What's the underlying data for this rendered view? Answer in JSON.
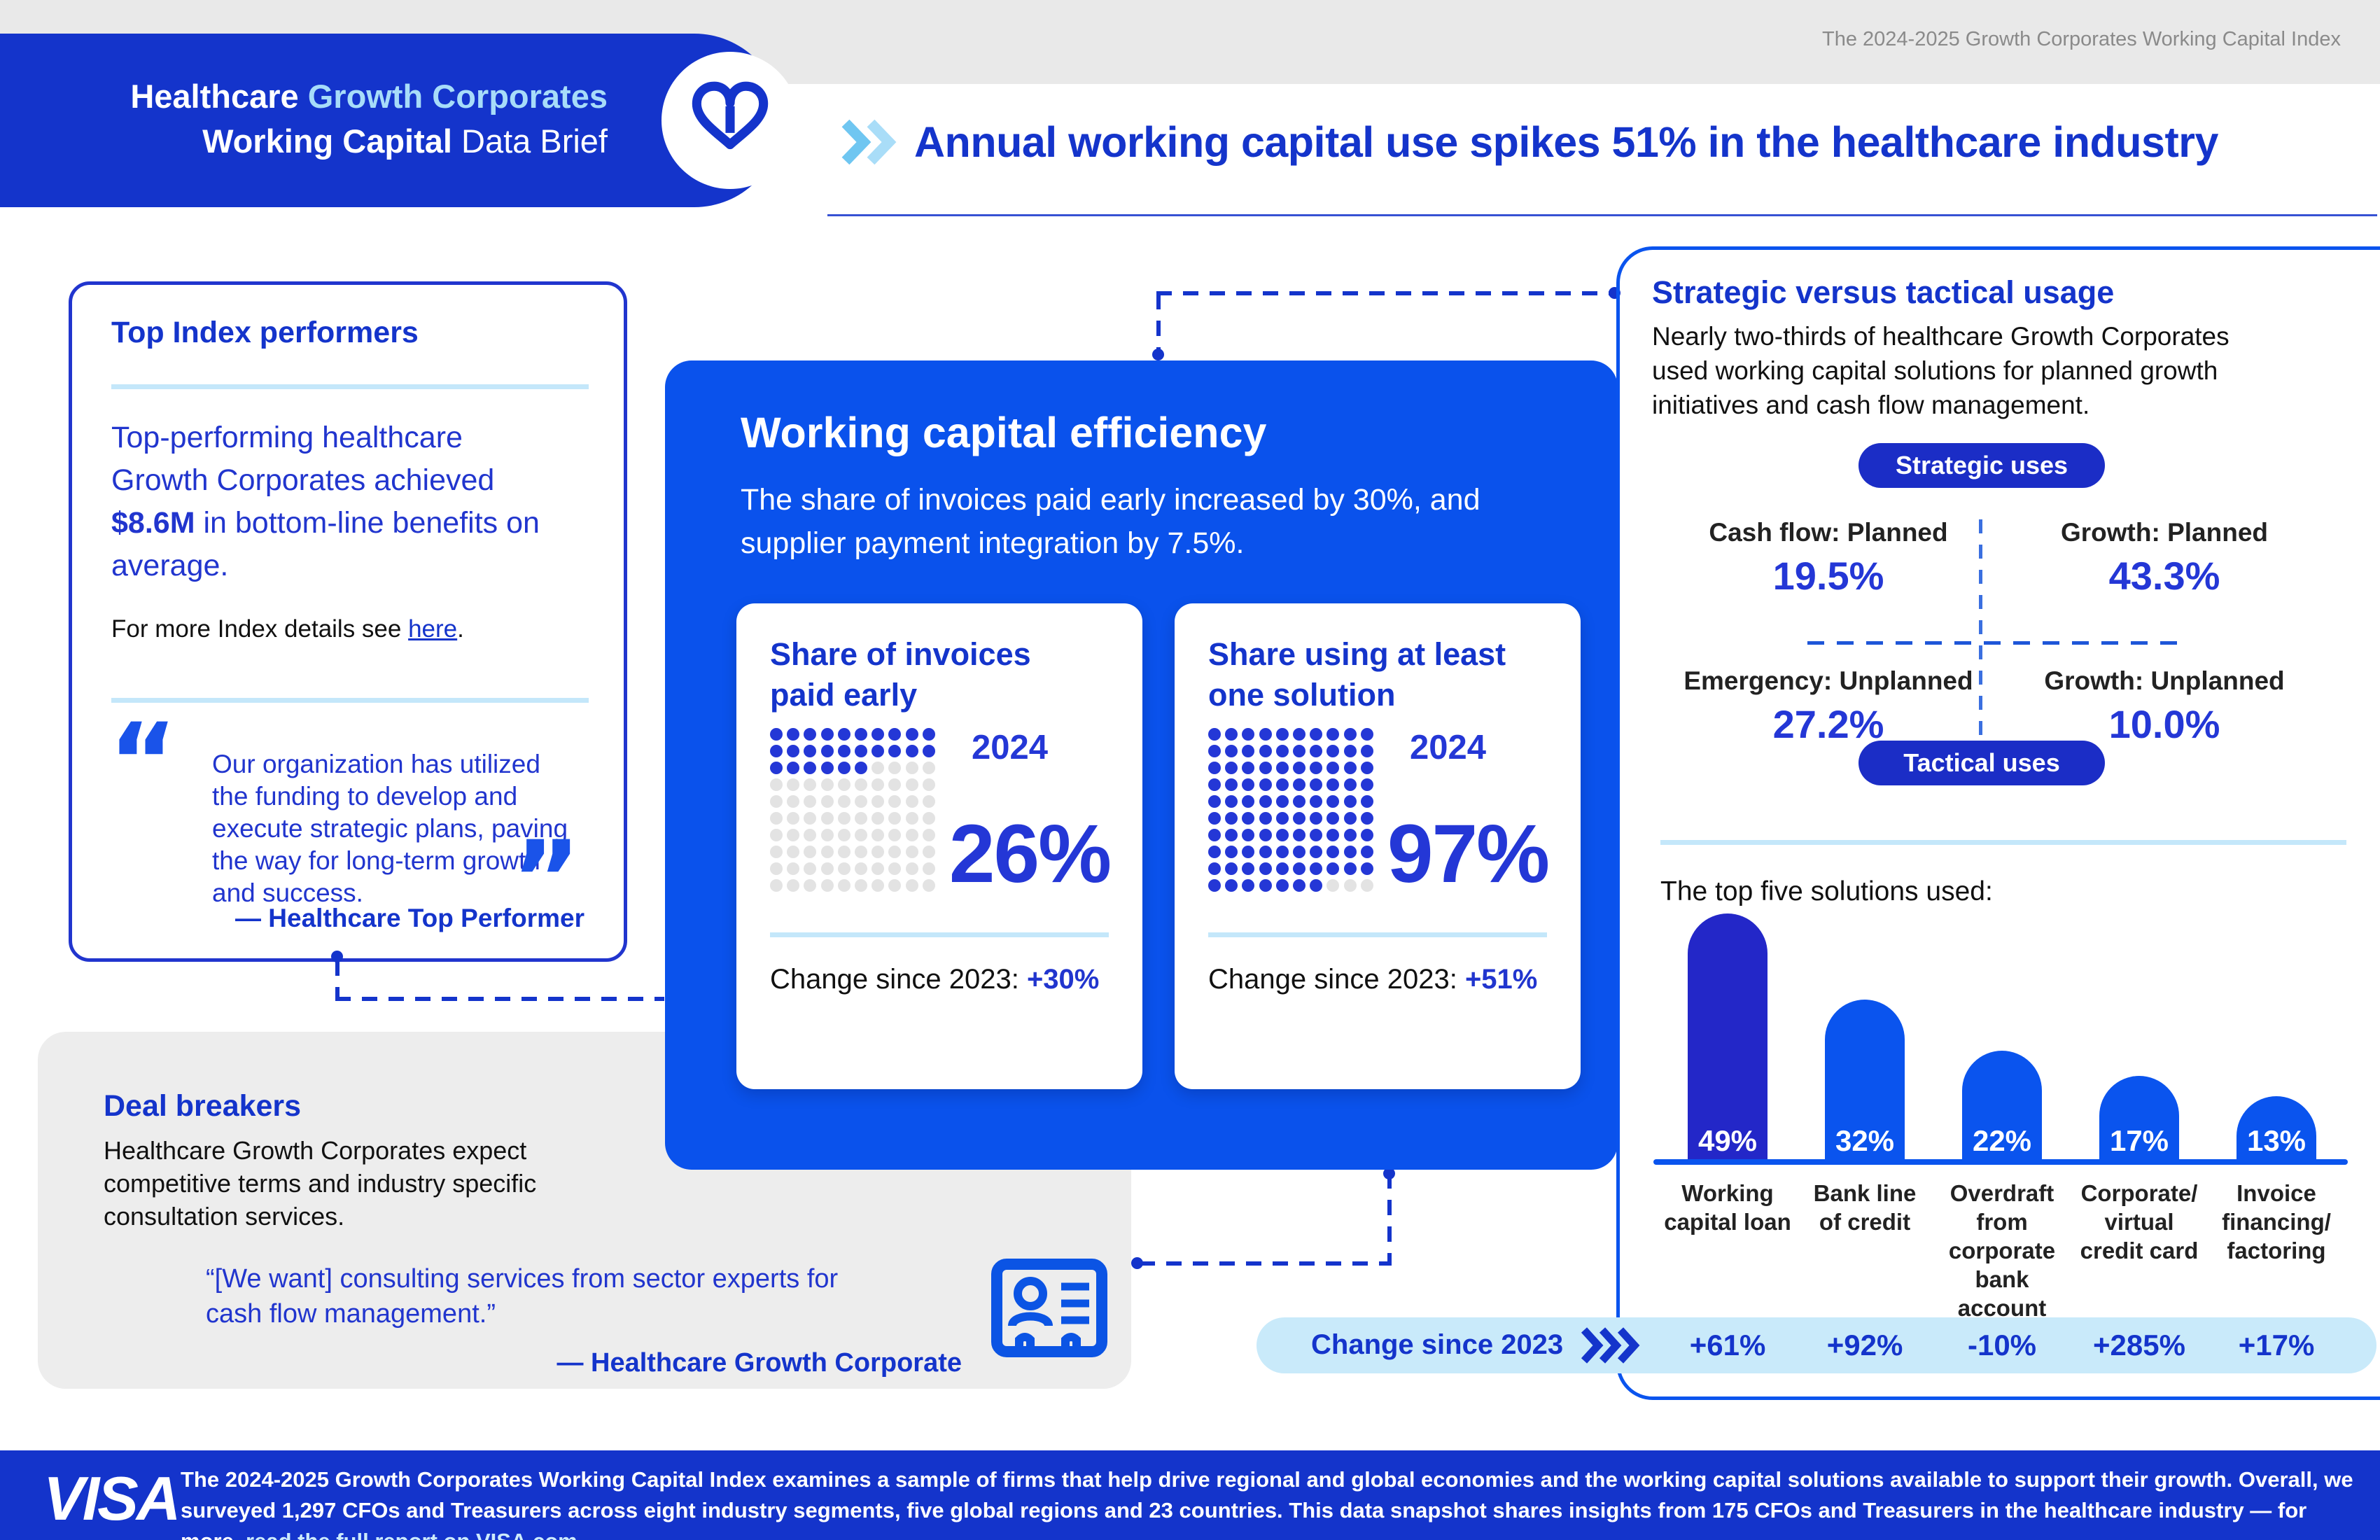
{
  "colors": {
    "visa_blue": "#1434CB",
    "bright_blue": "#0A52EC",
    "royal_value_blue": "#2437D6",
    "light_blue_accent": "#C4E7FA",
    "light_blue_pill": "#C9EAFA",
    "light_chevron": "#8FD0F4",
    "gray_band": "#e9e9e9",
    "dark_bar": "#2327C8"
  },
  "header": {
    "banner_line1_part1": "Healthcare ",
    "banner_line1_part2": "Growth Corporates",
    "banner_line2_part1": "Working Capital ",
    "banner_line2_part2": "Data Brief",
    "index_label": "The 2024-2025 Growth Corporates Working Capital Index",
    "headline": "Annual working capital use spikes 51% in the healthcare industry"
  },
  "top_performers": {
    "title": "Top Index performers",
    "para_part1": "Top-performing healthcare Growth Corporates achieved ",
    "para_bold": "$8.6M",
    "para_part2": " in bottom-line benefits on average.",
    "more_part1": "For more Index details see ",
    "more_link": "here",
    "more_part3": ".",
    "quote": "Our organization has utilized the funding to develop and execute strategic plans, paving the way for long-term growth and success.",
    "quote_attr": "— Healthcare Top Performer"
  },
  "efficiency": {
    "title": "Working capital efficiency",
    "subtitle": "The share of invoices paid early increased by 30%, and supplier payment integration by 7.5%.",
    "cards": [
      {
        "title": "Share of invoices paid early",
        "year": "2024",
        "value": "26%",
        "filled": 26,
        "total": 100,
        "change_prefix": "Change since 2023: ",
        "change_value": "+30%"
      },
      {
        "title": "Share using at least one solution",
        "year": "2024",
        "value": "97%",
        "filled": 97,
        "total": 100,
        "change_prefix": "Change since 2023: ",
        "change_value": "+51%"
      }
    ]
  },
  "strategic": {
    "title": "Strategic versus tactical usage",
    "para": "Nearly two-thirds of healthcare Growth Corporates used working capital solutions for planned growth initiatives and cash flow management.",
    "pill_top": "Strategic uses",
    "pill_bottom": "Tactical uses",
    "quadrant": [
      {
        "label": "Cash flow: Planned",
        "value": "19.5%"
      },
      {
        "label": "Growth: Planned",
        "value": "43.3%"
      },
      {
        "label": "Emergency: Unplanned",
        "value": "27.2%"
      },
      {
        "label": "Growth: Unplanned",
        "value": "10.0%"
      }
    ]
  },
  "chart_data": {
    "type": "bar",
    "title": "The top five solutions used:",
    "categories": [
      "Working capital loan",
      "Bank line of credit",
      "Overdraft from corporate bank account",
      "Corporate/ virtual credit card",
      "Invoice financing/ factoring"
    ],
    "values": [
      49,
      32,
      22,
      17,
      13
    ],
    "bar_labels": [
      "49%",
      "32%",
      "22%",
      "17%",
      "13%"
    ],
    "bar_colors": [
      "#2327C8",
      "#0A54EE",
      "#0A54EE",
      "#0A54EE",
      "#0A54EE"
    ],
    "ylim": [
      0,
      50
    ],
    "grid": false,
    "change_row": {
      "label": "Change since 2023",
      "values": [
        "+61%",
        "+92%",
        "-10%",
        "+285%",
        "+17%"
      ]
    }
  },
  "deal_breakers": {
    "title": "Deal breakers",
    "para": "Healthcare Growth Corporates expect competitive terms and industry specific consultation services.",
    "quote": "“[We want] consulting services from sector experts for cash flow management.”",
    "quote_attr": "— Healthcare Growth Corporate"
  },
  "footer": {
    "logo": "VISA",
    "text_part1": "The 2024-2025 Growth Corporates Working Capital Index examines a sample of firms that help drive regional and global economies and the working capital solutions available to support their growth. Overall, we surveyed 1,297 CFOs and Treasurers across eight industry segments, five global regions and 23 countries. This data snapshot shares insights from 175 CFOs and Treasurers in the healthcare industry — for more, ",
    "text_link": "read the full report on VISA.com",
    "text_part3": "."
  }
}
